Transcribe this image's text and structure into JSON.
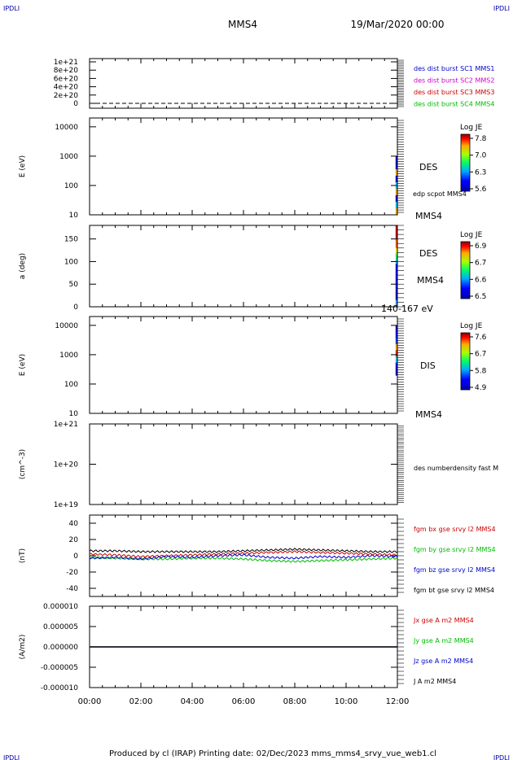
{
  "header": {
    "title": "MMS4",
    "date": "19/Mar/2020 00:00",
    "corner_tag": "IPDLI"
  },
  "footer": {
    "text": "Produced by cl (IRAP)   Printing date: 02/Dec/2023   mms_mms4_srvy_vue_web1.cl"
  },
  "colors": {
    "blue": "#0000cc",
    "magenta": "#cc00cc",
    "red": "#cc0000",
    "green": "#00bb00",
    "black": "#000000"
  },
  "chart_data": [
    {
      "type": "line",
      "ylim": [
        0,
        1e+21
      ],
      "yticks": [
        "1e+21",
        "8e+20",
        "6e+20",
        "4e+20",
        "2e+20",
        "0"
      ],
      "ytick_values": [
        1e+21,
        8e+20,
        6e+20,
        4e+20,
        2e+20,
        0
      ],
      "legend": [
        {
          "text": "des dist burst SC1 MMS1",
          "color": "#0000cc"
        },
        {
          "text": "des dist burst SC2 MMS2",
          "color": "#cc00cc"
        },
        {
          "text": "des dist burst SC3 MMS3",
          "color": "#cc0000"
        },
        {
          "text": "des dist burst SC4 MMS4",
          "color": "#00bb00"
        }
      ]
    },
    {
      "type": "heatmap",
      "ylabel": "E (eV)",
      "scale": "log",
      "ylim": [
        10,
        20000
      ],
      "yticks": [
        "10000",
        "1000",
        "100",
        "10"
      ],
      "ytick_values": [
        10000,
        1000,
        100,
        10
      ],
      "data_x_range": [
        "11:56",
        "12:00"
      ],
      "data_y_range": [
        10,
        1000
      ],
      "labels": [
        "DES",
        "edp scpot MMS4",
        "MMS4"
      ],
      "colorbar": {
        "title": "Log JE",
        "ticks": [
          "7.8",
          "7.0",
          "6.3",
          "5.6"
        ],
        "tick_values": [
          7.8,
          7.0,
          6.3,
          5.6
        ]
      }
    },
    {
      "type": "heatmap",
      "ylabel": "a (deg)",
      "ylim": [
        0,
        180
      ],
      "yticks": [
        "150",
        "100",
        "50",
        "0"
      ],
      "ytick_values": [
        150,
        100,
        50,
        0
      ],
      "data_x_range": [
        "11:56",
        "12:00"
      ],
      "labels": [
        "DES",
        "MMS4",
        "140-167 eV"
      ],
      "colorbar": {
        "title": "Log JE",
        "ticks": [
          "6.9",
          "6.7",
          "6.6",
          "6.5"
        ],
        "tick_values": [
          6.9,
          6.7,
          6.6,
          6.5
        ]
      }
    },
    {
      "type": "heatmap",
      "ylabel": "E (eV)",
      "scale": "log",
      "ylim": [
        10,
        20000
      ],
      "yticks": [
        "10000",
        "1000",
        "100",
        "10"
      ],
      "ytick_values": [
        10000,
        1000,
        100,
        10
      ],
      "data_x_range": [
        "11:56",
        "12:00"
      ],
      "data_y_range": [
        200,
        10000
      ],
      "labels": [
        "DIS",
        "MMS4"
      ],
      "colorbar": {
        "title": "Log JE",
        "ticks": [
          "7.6",
          "6.7",
          "5.8",
          "4.9"
        ],
        "tick_values": [
          7.6,
          6.7,
          5.8,
          4.9
        ]
      }
    },
    {
      "type": "line",
      "ylabel": "(cm^-3)",
      "scale": "log",
      "ylim": [
        1e+19,
        1e+21
      ],
      "yticks": [
        "1e+21",
        "1e+20",
        "1e+19"
      ],
      "ytick_values": [
        1e+21,
        1e+20,
        1e+19
      ],
      "legend": [
        {
          "text": "des numberdensity fast M",
          "color": "#000000"
        }
      ]
    },
    {
      "type": "line",
      "ylabel": "(nT)",
      "ylim": [
        -50,
        50
      ],
      "yticks": [
        "40",
        "20",
        "0",
        "-20",
        "-40"
      ],
      "ytick_values": [
        40,
        20,
        0,
        -20,
        -40
      ],
      "x": [
        "00:00",
        "01:00",
        "02:00",
        "03:00",
        "04:00",
        "05:00",
        "06:00",
        "07:00",
        "08:00",
        "09:00",
        "10:00",
        "11:00",
        "12:00"
      ],
      "series": [
        {
          "name": "fgm bx gse srvy l2 MMS4",
          "color": "#cc0000",
          "values": [
            2,
            1,
            -1,
            0,
            1,
            2,
            3,
            4,
            5,
            4,
            3,
            2,
            1
          ]
        },
        {
          "name": "fgm by gse srvy l2 MMS4",
          "color": "#00bb00",
          "values": [
            -2,
            -3,
            -4,
            -4,
            -3,
            -3,
            -4,
            -6,
            -7,
            -6,
            -5,
            -4,
            -3
          ]
        },
        {
          "name": "fgm bz gse srvy l2 MMS4",
          "color": "#0000cc",
          "values": [
            -3,
            -2,
            -4,
            -1,
            -2,
            0,
            1,
            -2,
            -3,
            -1,
            -2,
            0,
            -1
          ]
        },
        {
          "name": "fgm bt gse srvy l2 MMS4",
          "color": "#000000",
          "values": [
            6,
            6,
            5,
            5,
            5,
            5,
            6,
            7,
            8,
            7,
            6,
            5,
            5
          ]
        }
      ]
    },
    {
      "type": "line",
      "ylabel": "(A/m2)",
      "ylim": [
        -1e-05,
        1e-05
      ],
      "yticks": [
        "0.000010",
        "0.000005",
        "0.000000",
        "-0.000005",
        "-0.000010"
      ],
      "ytick_values": [
        1e-05,
        5e-06,
        0,
        -5e-06,
        -1e-05
      ],
      "x": [
        "00:00",
        "02:00",
        "04:00",
        "06:00",
        "08:00",
        "10:00",
        "12:00"
      ],
      "series": [
        {
          "name": "Jx gse A m2 MMS4",
          "color": "#cc0000",
          "values": [
            0,
            0,
            0,
            0,
            0,
            0,
            0
          ]
        },
        {
          "name": "Jy gse A m2 MMS4",
          "color": "#00bb00",
          "values": [
            0,
            0,
            0,
            0,
            0,
            0,
            0
          ]
        },
        {
          "name": "Jz gse A m2 MMS4",
          "color": "#0000cc",
          "values": [
            0,
            0,
            0,
            0,
            0,
            0,
            0
          ]
        },
        {
          "name": "J A m2 MMS4",
          "color": "#000000",
          "values": [
            0,
            0,
            0,
            0,
            0,
            0,
            0
          ]
        }
      ]
    }
  ],
  "xaxis": {
    "ticks": [
      "00:00",
      "02:00",
      "04:00",
      "06:00",
      "08:00",
      "10:00",
      "12:00"
    ],
    "range_hours": [
      0,
      12
    ]
  }
}
